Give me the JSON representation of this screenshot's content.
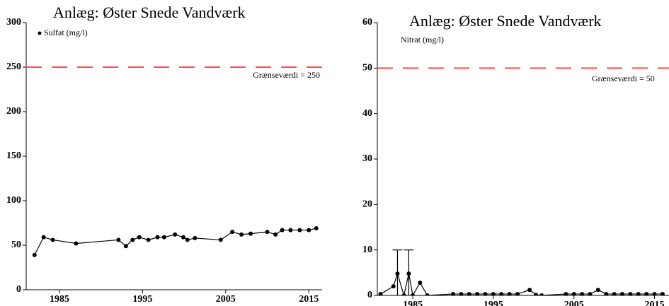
{
  "chart_data": [
    {
      "type": "line",
      "title": "Anlæg: Øster Snede Vandværk",
      "series": [
        {
          "name": "Sulfat (mg/l)",
          "color": "#000000",
          "x": [
            1982.0,
            1983.1,
            1984.2,
            1987.0,
            1992.1,
            1993.0,
            1993.8,
            1994.6,
            1995.7,
            1996.8,
            1997.6,
            1998.9,
            1999.9,
            2000.4,
            2001.3,
            2004.4,
            2005.8,
            2006.9,
            2008.0,
            2010.0,
            2011.0,
            2011.8,
            2012.8,
            2013.9,
            2015.0,
            2015.9
          ],
          "values": [
            39,
            59,
            56,
            52,
            56,
            49,
            56,
            59,
            56,
            59,
            59,
            62,
            59,
            56,
            58,
            56,
            65,
            62,
            63,
            65,
            62,
            67,
            67,
            67,
            67,
            69
          ]
        }
      ],
      "threshold": 250,
      "threshold_label": "Grænseværdi = 250",
      "threshold_color": "#ff4d4d",
      "xlim": [
        1981,
        2016.6
      ],
      "xticks": [
        1985,
        1995,
        2005,
        2015
      ],
      "ylim": [
        0,
        300
      ],
      "yticks": [
        0,
        50,
        100,
        150,
        200,
        250,
        300
      ]
    },
    {
      "type": "line",
      "title": "Anlæg: Øster Snede Vandværk",
      "series": [
        {
          "name": "Nitrat (mg/l)",
          "color": "#000000",
          "x": [
            1981.0,
            1982.6,
            1983.1,
            1983.9,
            1984.5,
            1985.0,
            1985.9,
            1986.8,
            1990.0,
            1991.0,
            1992.0,
            1993.0,
            1994.0,
            1995.0,
            1996.0,
            1997.0,
            1998.0,
            1999.5,
            2000.3,
            2001.0,
            2004.0,
            2005.0,
            2006.0,
            2007.0,
            2008.0,
            2009.0,
            2010.0,
            2011.0,
            2012.0,
            2013.0,
            2014.0,
            2015.0,
            2016.0
          ],
          "values": [
            0.3,
            2,
            4.8,
            0,
            4.8,
            0,
            2.8,
            0,
            0.3,
            0.3,
            0.3,
            0.3,
            0.3,
            0.3,
            0.3,
            0.3,
            0.3,
            1.2,
            0.1,
            0,
            0.3,
            0.3,
            0.3,
            0.3,
            1.2,
            0.3,
            0.3,
            0.3,
            0.3,
            0.3,
            0.3,
            0.3,
            0.3
          ],
          "errors": [
            null,
            null,
            5.2,
            null,
            5.2,
            null,
            null,
            null,
            null,
            null,
            null,
            null,
            null,
            null,
            null,
            null,
            null,
            null,
            null,
            null,
            null,
            null,
            null,
            null,
            null,
            null,
            null,
            null,
            null,
            null,
            null,
            null,
            null
          ]
        }
      ],
      "threshold": 50,
      "threshold_label": "Grænseværdi = 50",
      "threshold_color": "#ff4d4d",
      "xlim": [
        1980.6,
        2016.8
      ],
      "xticks": [
        1985,
        1995,
        2005,
        2015
      ],
      "ylim": [
        0,
        60
      ],
      "yticks": [
        0,
        10,
        20,
        30,
        40,
        50,
        60
      ]
    }
  ]
}
